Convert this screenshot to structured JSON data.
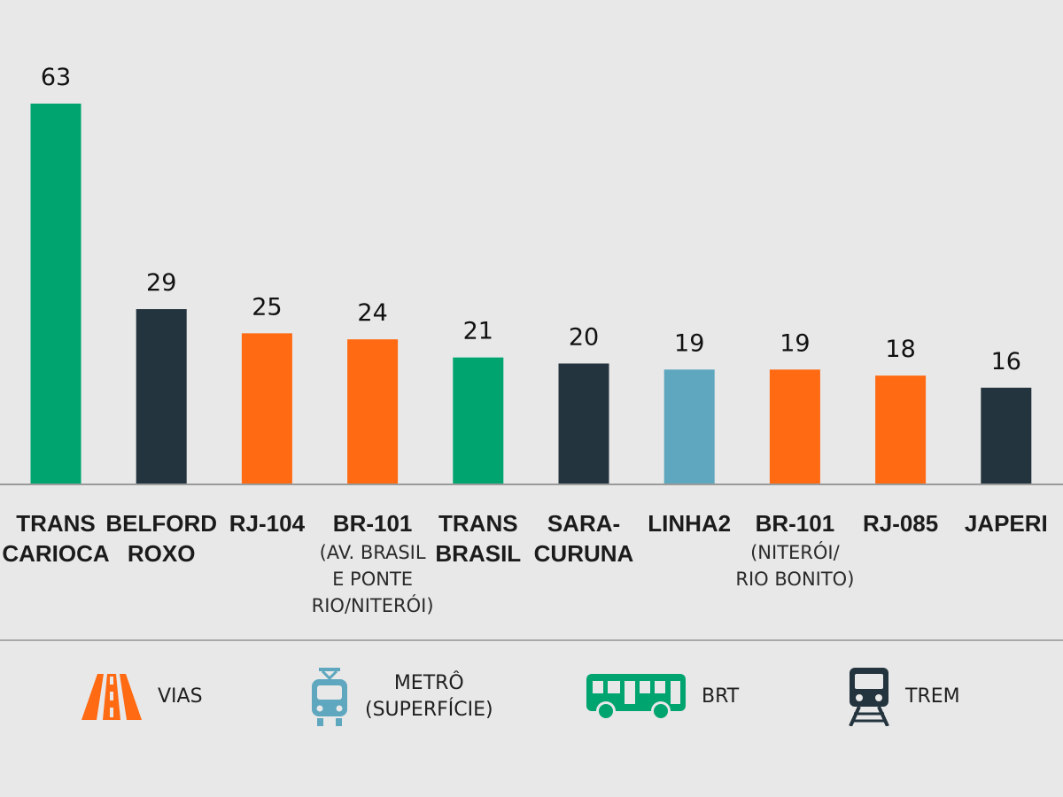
{
  "chart_data": {
    "type": "bar",
    "categories": [
      {
        "main": [
          "TRANS",
          "CARIOCA"
        ],
        "sub": [],
        "mode": "brt"
      },
      {
        "main": [
          "BELFORD",
          "ROXO"
        ],
        "sub": [],
        "mode": "trem"
      },
      {
        "main": [
          "RJ-104"
        ],
        "sub": [],
        "mode": "vias"
      },
      {
        "main": [
          "BR-101"
        ],
        "sub": [
          "(AV. BRASIL",
          "E PONTE",
          "RIO/NITERÓI)"
        ],
        "mode": "vias"
      },
      {
        "main": [
          "TRANS",
          "BRASIL"
        ],
        "sub": [],
        "mode": "brt"
      },
      {
        "main": [
          "SARA-",
          "CURUNA"
        ],
        "sub": [],
        "mode": "trem"
      },
      {
        "main": [
          "LINHA2"
        ],
        "sub": [],
        "mode": "metro"
      },
      {
        "main": [
          "BR-101"
        ],
        "sub": [
          "(NITERÓI/",
          "RIO BONITO)"
        ],
        "mode": "vias"
      },
      {
        "main": [
          "RJ-085"
        ],
        "sub": [],
        "mode": "vias"
      },
      {
        "main": [
          "JAPERI"
        ],
        "sub": [],
        "mode": "trem"
      }
    ],
    "values": [
      63,
      29,
      25,
      24,
      21,
      20,
      19,
      19,
      18,
      16
    ],
    "ylim": [
      0,
      63
    ],
    "grid": false,
    "legend_position": "bottom"
  },
  "colors": {
    "vias": "#ff6a13",
    "metro": "#5ea7bf",
    "brt": "#00a46f",
    "trem": "#24343e",
    "background": "#e8e8e8",
    "baseline": "#9a9a9a"
  },
  "legend": [
    {
      "key": "vias",
      "icon": "road-icon",
      "label_lines": [
        "VIAS"
      ]
    },
    {
      "key": "metro",
      "icon": "tram-icon",
      "label_lines": [
        "METRÔ",
        "(SUPERFÍCIE)"
      ]
    },
    {
      "key": "brt",
      "icon": "bus-icon",
      "label_lines": [
        "BRT"
      ]
    },
    {
      "key": "trem",
      "icon": "train-icon",
      "label_lines": [
        "TREM"
      ]
    }
  ]
}
